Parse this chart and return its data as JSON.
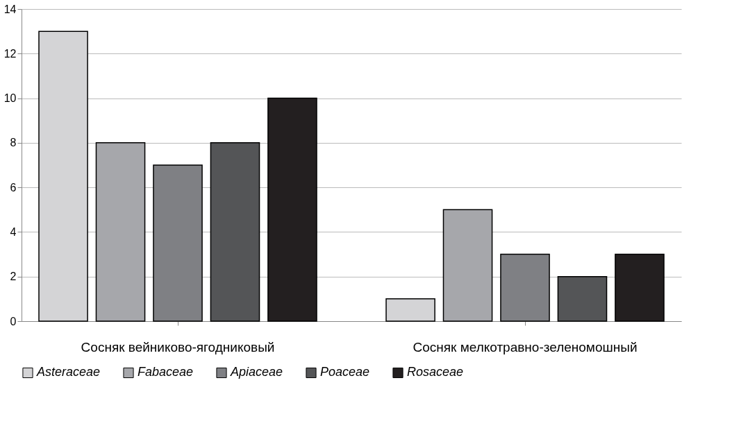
{
  "chart_data": {
    "type": "bar",
    "categories": [
      "Сосняк вейниково-ягодниковый",
      "Сосняк мелкотравно-зеленомошный"
    ],
    "series": [
      {
        "name": "Asteraceae",
        "color": "#d4d4d6",
        "values": [
          13,
          1
        ]
      },
      {
        "name": "Fabaceae",
        "color": "#a6a7ab",
        "values": [
          8,
          5
        ]
      },
      {
        "name": "Apiaceae",
        "color": "#7f8084",
        "values": [
          7,
          3
        ]
      },
      {
        "name": "Poaceae",
        "color": "#545557",
        "values": [
          8,
          2
        ]
      },
      {
        "name": "Rosaceae",
        "color": "#231f20",
        "values": [
          10,
          3
        ]
      }
    ],
    "ylim": [
      0,
      14
    ],
    "yticks": [
      0,
      2,
      4,
      6,
      8,
      10,
      12,
      14
    ],
    "grid": "y",
    "legend": "bottom"
  }
}
